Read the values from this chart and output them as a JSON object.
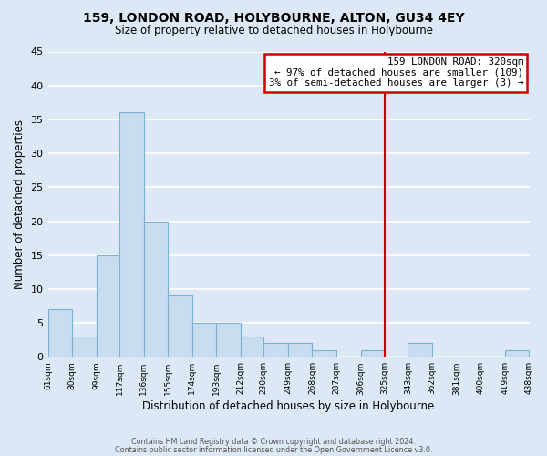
{
  "title": "159, LONDON ROAD, HOLYBOURNE, ALTON, GU34 4EY",
  "subtitle": "Size of property relative to detached houses in Holybourne",
  "xlabel": "Distribution of detached houses by size in Holybourne",
  "ylabel": "Number of detached properties",
  "bar_color": "#c8ddf0",
  "bar_edge_color": "#7ab0d4",
  "background_color": "#dce8f5",
  "grid_color": "#ffffff",
  "bin_edges": [
    61,
    80,
    99,
    117,
    136,
    155,
    174,
    193,
    212,
    230,
    249,
    268,
    287,
    306,
    325,
    343,
    362,
    381,
    400,
    419,
    438
  ],
  "counts": [
    7,
    3,
    15,
    36,
    20,
    9,
    5,
    5,
    3,
    2,
    2,
    1,
    0,
    1,
    0,
    2,
    0,
    0,
    0,
    1
  ],
  "tick_labels": [
    "61sqm",
    "80sqm",
    "99sqm",
    "117sqm",
    "136sqm",
    "155sqm",
    "174sqm",
    "193sqm",
    "212sqm",
    "230sqm",
    "249sqm",
    "268sqm",
    "287sqm",
    "306sqm",
    "325sqm",
    "343sqm",
    "362sqm",
    "381sqm",
    "400sqm",
    "419sqm",
    "438sqm"
  ],
  "vline_x": 325,
  "vline_color": "#cc0000",
  "ylim": [
    0,
    45
  ],
  "yticks": [
    0,
    5,
    10,
    15,
    20,
    25,
    30,
    35,
    40,
    45
  ],
  "annotation_title": "159 LONDON ROAD: 320sqm",
  "annotation_line1": "← 97% of detached houses are smaller (109)",
  "annotation_line2": "3% of semi-detached houses are larger (3) →",
  "footnote1": "Contains HM Land Registry data © Crown copyright and database right 2024.",
  "footnote2": "Contains public sector information licensed under the Open Government Licence v3.0."
}
